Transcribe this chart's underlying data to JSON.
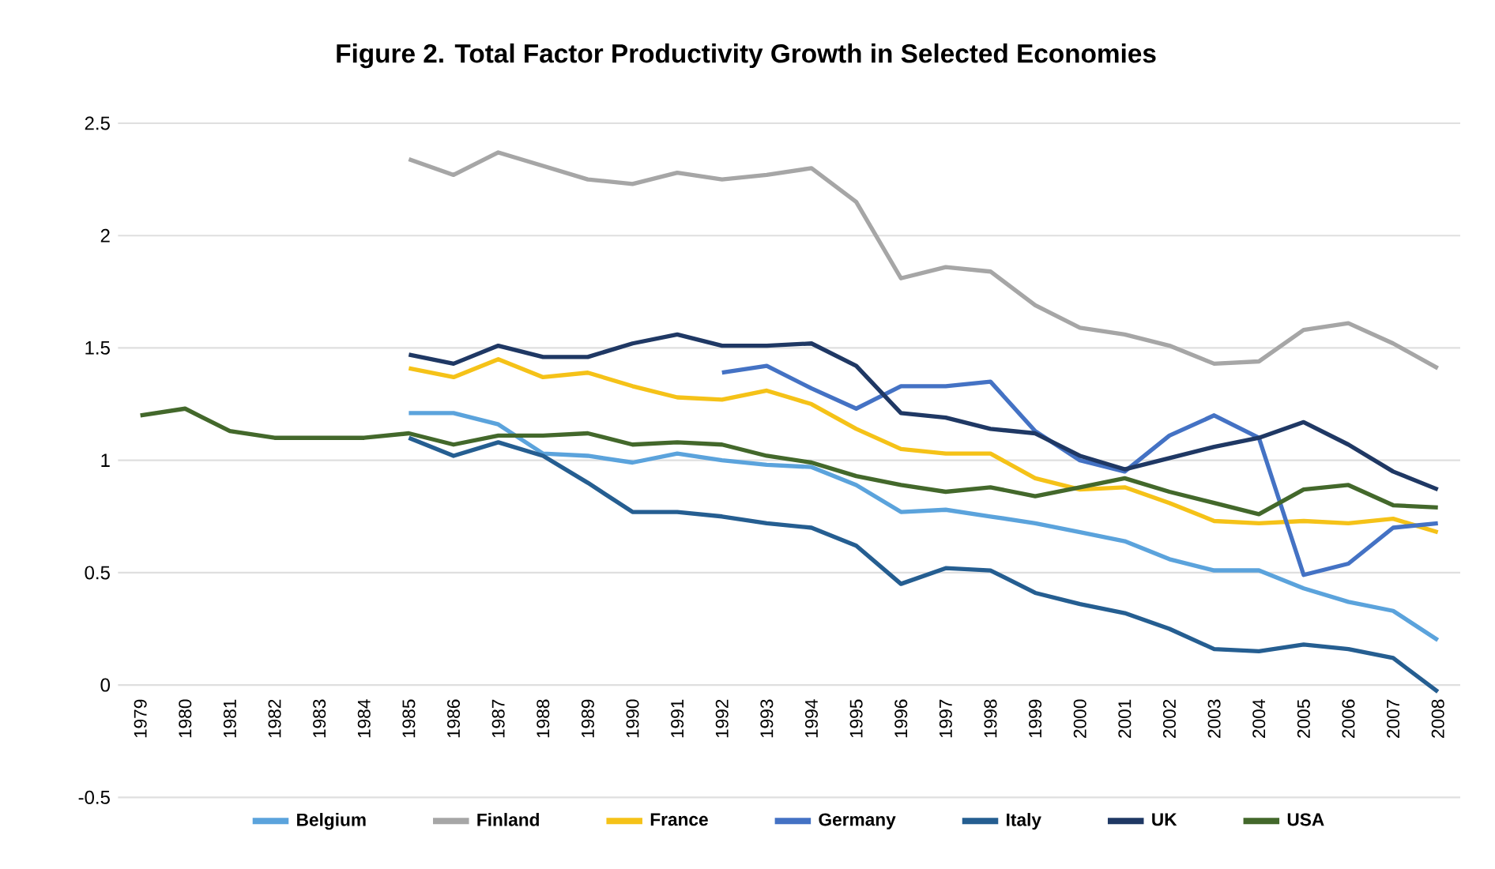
{
  "chart_data": {
    "type": "line",
    "title": "Figure 2. Total Factor Productivity Growth in Selected Economies",
    "categories": [
      "1979",
      "1980",
      "1981",
      "1982",
      "1983",
      "1984",
      "1985",
      "1986",
      "1987",
      "1988",
      "1989",
      "1990",
      "1991",
      "1992",
      "1993",
      "1994",
      "1995",
      "1996",
      "1997",
      "1998",
      "1999",
      "2000",
      "2001",
      "2002",
      "2003",
      "2004",
      "2005",
      "2006",
      "2007",
      "2008"
    ],
    "series": [
      {
        "name": "Belgium",
        "color": "#5ba3dc",
        "values": [
          null,
          null,
          null,
          null,
          null,
          null,
          1.21,
          1.21,
          1.16,
          1.03,
          1.02,
          0.99,
          1.03,
          1.0,
          0.98,
          0.97,
          0.89,
          0.77,
          0.78,
          0.75,
          0.72,
          0.68,
          0.64,
          0.56,
          0.51,
          0.51,
          0.43,
          0.37,
          0.33,
          0.2
        ]
      },
      {
        "name": "Finland",
        "color": "#a6a6a6",
        "values": [
          null,
          null,
          null,
          null,
          null,
          null,
          2.34,
          2.27,
          2.37,
          2.31,
          2.25,
          2.23,
          2.28,
          2.25,
          2.27,
          2.3,
          2.15,
          1.81,
          1.86,
          1.84,
          1.69,
          1.59,
          1.56,
          1.51,
          1.43,
          1.44,
          1.58,
          1.61,
          1.52,
          1.41
        ]
      },
      {
        "name": "France",
        "color": "#f5c218",
        "values": [
          null,
          null,
          null,
          null,
          null,
          null,
          1.41,
          1.37,
          1.45,
          1.37,
          1.39,
          1.33,
          1.28,
          1.27,
          1.31,
          1.25,
          1.14,
          1.05,
          1.03,
          1.03,
          0.92,
          0.87,
          0.88,
          0.81,
          0.73,
          0.72,
          0.73,
          0.72,
          0.74,
          0.68
        ]
      },
      {
        "name": "Germany",
        "color": "#4472c4",
        "values": [
          null,
          null,
          null,
          null,
          null,
          null,
          null,
          null,
          null,
          null,
          null,
          null,
          null,
          1.39,
          1.42,
          1.32,
          1.23,
          1.33,
          1.33,
          1.35,
          1.13,
          1.0,
          0.95,
          1.11,
          1.2,
          1.1,
          0.49,
          0.54,
          0.7,
          0.72
        ]
      },
      {
        "name": "Italy",
        "color": "#255e91",
        "values": [
          null,
          null,
          null,
          null,
          null,
          null,
          1.1,
          1.02,
          1.08,
          1.02,
          0.9,
          0.77,
          0.77,
          0.75,
          0.72,
          0.7,
          0.62,
          0.45,
          0.52,
          0.51,
          0.41,
          0.36,
          0.32,
          0.25,
          0.16,
          0.15,
          0.18,
          0.16,
          0.12,
          -0.03
        ]
      },
      {
        "name": "UK",
        "color": "#1f3864",
        "values": [
          null,
          null,
          null,
          null,
          null,
          null,
          1.47,
          1.43,
          1.51,
          1.46,
          1.46,
          1.52,
          1.56,
          1.51,
          1.51,
          1.52,
          1.42,
          1.21,
          1.19,
          1.14,
          1.12,
          1.02,
          0.96,
          1.01,
          1.06,
          1.1,
          1.17,
          1.07,
          0.95,
          0.87
        ]
      },
      {
        "name": "USA",
        "color": "#43682b",
        "values": [
          1.2,
          1.23,
          1.13,
          1.1,
          1.1,
          1.1,
          1.12,
          1.07,
          1.11,
          1.11,
          1.12,
          1.07,
          1.08,
          1.07,
          1.02,
          0.99,
          0.93,
          0.89,
          0.86,
          0.88,
          0.84,
          0.88,
          0.92,
          0.86,
          0.81,
          0.76,
          0.87,
          0.89,
          0.8,
          0.79
        ]
      }
    ],
    "ylim": [
      -0.5,
      2.5
    ],
    "yticks": [
      -0.5,
      0,
      0.5,
      1,
      1.5,
      2,
      2.5
    ],
    "grid": "y",
    "legend": "bottom",
    "marker": "none",
    "line_style": "solid"
  }
}
